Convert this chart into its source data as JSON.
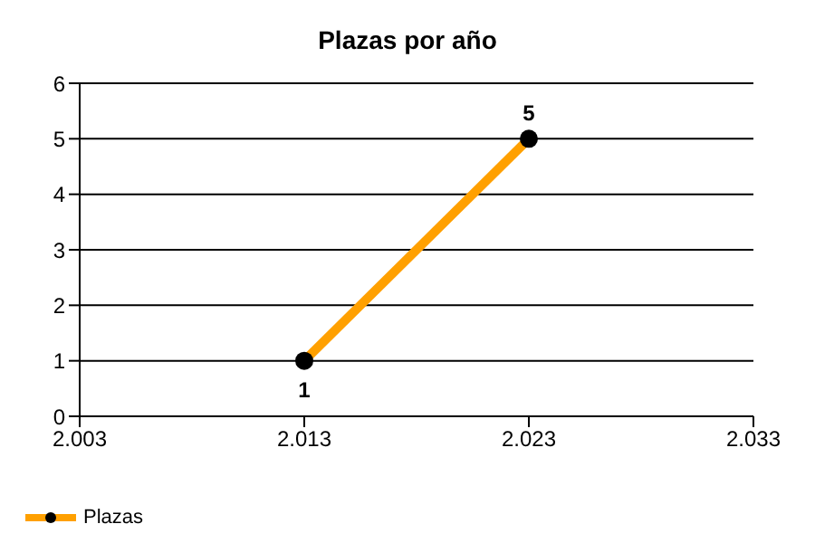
{
  "chart_data": {
    "type": "line",
    "title": "Plazas por año",
    "x": [
      2013,
      2023
    ],
    "series": [
      {
        "name": "Plazas",
        "color": "#ffa000",
        "values": [
          1,
          5
        ]
      }
    ],
    "xlim": [
      2003,
      2033
    ],
    "xticks": [
      {
        "value": 2003,
        "label": "2.003"
      },
      {
        "value": 2013,
        "label": "2.013"
      },
      {
        "value": 2023,
        "label": "2.023"
      },
      {
        "value": 2033,
        "label": "2.033"
      }
    ],
    "ylim": [
      0,
      6
    ],
    "yticks": [
      0,
      1,
      2,
      3,
      4,
      5,
      6
    ],
    "grid": "y",
    "legend": "bottom left",
    "marker": "circle",
    "data_labels": true
  }
}
